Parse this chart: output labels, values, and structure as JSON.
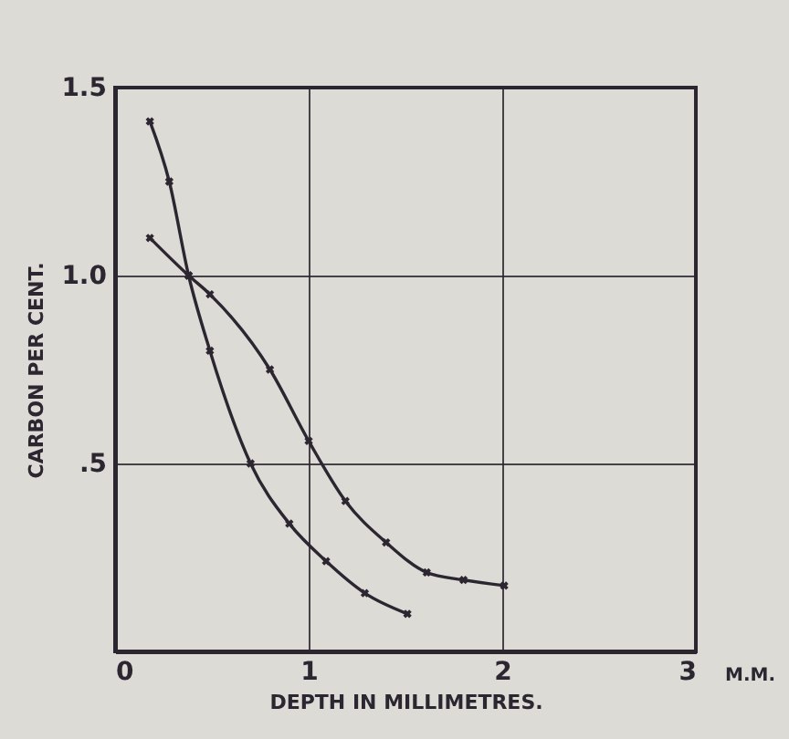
{
  "chart_data": {
    "type": "line",
    "xlabel": "DEPTH IN MILLIMETRES.",
    "ylabel": "CARBON PER CENT.",
    "annotations": [
      "M.M."
    ],
    "xlim": [
      0,
      3
    ],
    "ylim": [
      0,
      1.5
    ],
    "xticks": [
      0,
      1,
      2,
      3
    ],
    "yticks": [
      {
        "value": 0.5,
        "label": ".5"
      },
      {
        "value": 1,
        "label": "1.0"
      },
      {
        "value": 1.5,
        "label": "1.5"
      }
    ],
    "grid": true,
    "marker": "cross",
    "line_style": "solid",
    "series": [
      {
        "color": "#2b2630",
        "x": [
          0.18,
          0.28,
          0.38,
          0.49,
          0.7,
          0.9,
          1.09,
          1.29,
          1.51
        ],
        "values": [
          1.41,
          1.25,
          1.0,
          0.8,
          0.5,
          0.34,
          0.24,
          0.155,
          0.1
        ]
      },
      {
        "color": "#2b2630",
        "x": [
          0.18,
          0.38,
          0.49,
          0.8,
          1.0,
          1.19,
          1.4,
          1.61,
          1.8,
          2.01
        ],
        "values": [
          1.1,
          1.0,
          0.95,
          0.75,
          0.56,
          0.4,
          0.29,
          0.21,
          0.19,
          0.175
        ]
      }
    ]
  }
}
